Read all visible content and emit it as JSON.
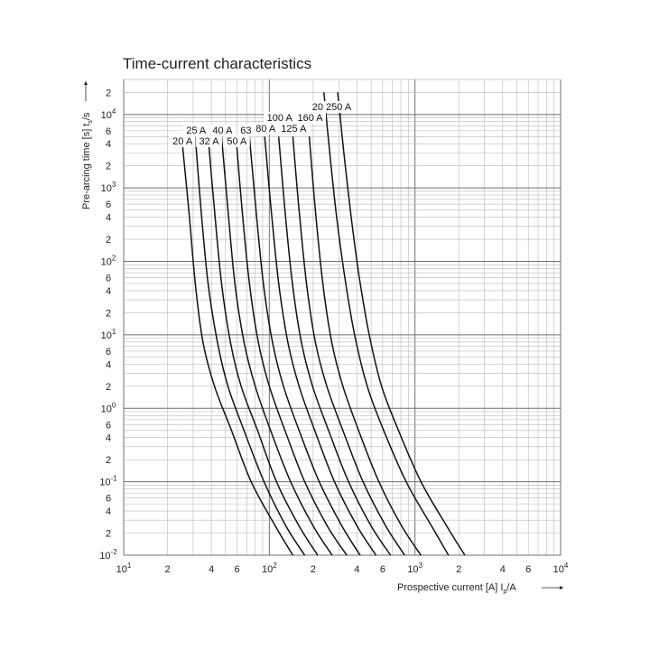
{
  "chart_data": {
    "type": "line",
    "title": "Time-current characteristics",
    "xlabel": "Prospective current [A]  I",
    "xlabel_sub": "p",
    "xlabel_unit": "/A",
    "ylabel": "Pre-arcing time [s]  t",
    "ylabel_sub": "s",
    "ylabel_unit": "/s",
    "xscale": "log",
    "yscale": "log",
    "xlim": [
      10,
      10000
    ],
    "ylim": [
      0.01,
      30000
    ],
    "grid": true,
    "x_ticks": [
      {
        "value": 10,
        "base": "10",
        "exp": "1"
      },
      {
        "value": 20,
        "label": "2"
      },
      {
        "value": 40,
        "label": "4"
      },
      {
        "value": 60,
        "label": "6"
      },
      {
        "value": 100,
        "base": "10",
        "exp": "2"
      },
      {
        "value": 200,
        "label": "2"
      },
      {
        "value": 400,
        "label": "4"
      },
      {
        "value": 600,
        "label": "6"
      },
      {
        "value": 1000,
        "base": "10",
        "exp": "3"
      },
      {
        "value": 2000,
        "label": "2"
      },
      {
        "value": 4000,
        "label": "4"
      },
      {
        "value": 6000,
        "label": "6"
      },
      {
        "value": 10000,
        "base": "10",
        "exp": "4"
      }
    ],
    "y_ticks": [
      {
        "value": 0.01,
        "base": "10",
        "exp": "-2"
      },
      {
        "value": 0.02,
        "label": "2"
      },
      {
        "value": 0.04,
        "label": "4"
      },
      {
        "value": 0.06,
        "label": "6"
      },
      {
        "value": 0.1,
        "base": "10",
        "exp": "-1"
      },
      {
        "value": 0.2,
        "label": "2"
      },
      {
        "value": 0.4,
        "label": "4"
      },
      {
        "value": 0.6,
        "label": "6"
      },
      {
        "value": 1,
        "base": "10",
        "exp": "0"
      },
      {
        "value": 2,
        "label": "2"
      },
      {
        "value": 4,
        "label": "4"
      },
      {
        "value": 6,
        "label": "6"
      },
      {
        "value": 10,
        "base": "10",
        "exp": "1"
      },
      {
        "value": 20,
        "label": "2"
      },
      {
        "value": 40,
        "label": "4"
      },
      {
        "value": 60,
        "label": "6"
      },
      {
        "value": 100,
        "base": "10",
        "exp": "2"
      },
      {
        "value": 200,
        "label": "2"
      },
      {
        "value": 400,
        "label": "4"
      },
      {
        "value": 600,
        "label": "6"
      },
      {
        "value": 1000,
        "base": "10",
        "exp": "3"
      },
      {
        "value": 2000,
        "label": "2"
      },
      {
        "value": 4000,
        "label": "4"
      },
      {
        "value": 6000,
        "label": "6"
      },
      {
        "value": 10000,
        "base": "10",
        "exp": "4"
      },
      {
        "value": 20000,
        "label": "2"
      }
    ],
    "series": [
      {
        "name": "20 A",
        "label_row": 1,
        "points": [
          [
            25,
            5000
          ],
          [
            28,
            500
          ],
          [
            31,
            50
          ],
          [
            35,
            8
          ],
          [
            42,
            2
          ],
          [
            55,
            0.5
          ],
          [
            75,
            0.1
          ],
          [
            110,
            0.025
          ],
          [
            145,
            0.01
          ]
        ]
      },
      {
        "name": "25 A",
        "label_row": 2,
        "points": [
          [
            31,
            5000
          ],
          [
            34,
            500
          ],
          [
            38,
            50
          ],
          [
            44,
            8
          ],
          [
            52,
            2
          ],
          [
            67,
            0.5
          ],
          [
            92,
            0.1
          ],
          [
            130,
            0.025
          ],
          [
            175,
            0.01
          ]
        ]
      },
      {
        "name": "32 A",
        "label_row": 1,
        "points": [
          [
            38,
            5000
          ],
          [
            42,
            500
          ],
          [
            47,
            50
          ],
          [
            54,
            8
          ],
          [
            64,
            2
          ],
          [
            83,
            0.5
          ],
          [
            112,
            0.1
          ],
          [
            160,
            0.025
          ],
          [
            215,
            0.01
          ]
        ]
      },
      {
        "name": "40 A",
        "label_row": 2,
        "points": [
          [
            47,
            5000
          ],
          [
            52,
            500
          ],
          [
            58,
            50
          ],
          [
            67,
            8
          ],
          [
            80,
            2
          ],
          [
            102,
            0.5
          ],
          [
            140,
            0.1
          ],
          [
            200,
            0.025
          ],
          [
            270,
            0.01
          ]
        ]
      },
      {
        "name": "50 A",
        "label_row": 1,
        "points": [
          [
            59,
            5000
          ],
          [
            65,
            500
          ],
          [
            73,
            50
          ],
          [
            84,
            8
          ],
          [
            100,
            2
          ],
          [
            128,
            0.5
          ],
          [
            175,
            0.1
          ],
          [
            250,
            0.025
          ],
          [
            340,
            0.01
          ]
        ]
      },
      {
        "name": "63 A",
        "label_row": 2,
        "points": [
          [
            73,
            5000
          ],
          [
            81,
            500
          ],
          [
            91,
            50
          ],
          [
            105,
            8
          ],
          [
            125,
            2
          ],
          [
            160,
            0.5
          ],
          [
            220,
            0.1
          ],
          [
            315,
            0.025
          ],
          [
            420,
            0.01
          ]
        ]
      },
      {
        "name": "80 A",
        "label_row": 3,
        "points": [
          [
            93,
            5000
          ],
          [
            103,
            500
          ],
          [
            116,
            50
          ],
          [
            134,
            8
          ],
          [
            160,
            2
          ],
          [
            205,
            0.5
          ],
          [
            280,
            0.1
          ],
          [
            400,
            0.025
          ],
          [
            540,
            0.01
          ]
        ]
      },
      {
        "name": "100 A",
        "label_row": 4,
        "points": [
          [
            116,
            5000
          ],
          [
            128,
            500
          ],
          [
            144,
            50
          ],
          [
            166,
            8
          ],
          [
            198,
            2
          ],
          [
            255,
            0.5
          ],
          [
            350,
            0.1
          ],
          [
            500,
            0.025
          ],
          [
            680,
            0.01
          ]
        ]
      },
      {
        "name": "125 A",
        "label_row": 3,
        "points": [
          [
            145,
            5000
          ],
          [
            160,
            500
          ],
          [
            180,
            50
          ],
          [
            207,
            8
          ],
          [
            248,
            2
          ],
          [
            320,
            0.5
          ],
          [
            440,
            0.1
          ],
          [
            630,
            0.025
          ],
          [
            850,
            0.01
          ]
        ]
      },
      {
        "name": "160 A",
        "label_row": 4,
        "points": [
          [
            188,
            5000
          ],
          [
            207,
            500
          ],
          [
            233,
            50
          ],
          [
            268,
            8
          ],
          [
            320,
            2
          ],
          [
            410,
            0.5
          ],
          [
            565,
            0.1
          ],
          [
            810,
            0.025
          ],
          [
            1100,
            0.01
          ]
        ]
      },
      {
        "name": "200 A",
        "label_row": 5,
        "points": [
          [
            237,
            20000
          ],
          [
            260,
            3000
          ],
          [
            290,
            400
          ],
          [
            330,
            60
          ],
          [
            385,
            10
          ],
          [
            470,
            2
          ],
          [
            610,
            0.5
          ],
          [
            870,
            0.1
          ],
          [
            1300,
            0.025
          ],
          [
            1700,
            0.01
          ]
        ]
      },
      {
        "name": "250 A",
        "label_row": 5,
        "points": [
          [
            295,
            20000
          ],
          [
            325,
            3000
          ],
          [
            365,
            400
          ],
          [
            415,
            60
          ],
          [
            485,
            10
          ],
          [
            590,
            2
          ],
          [
            770,
            0.5
          ],
          [
            1100,
            0.1
          ],
          [
            1650,
            0.025
          ],
          [
            2200,
            0.01
          ]
        ]
      }
    ]
  }
}
